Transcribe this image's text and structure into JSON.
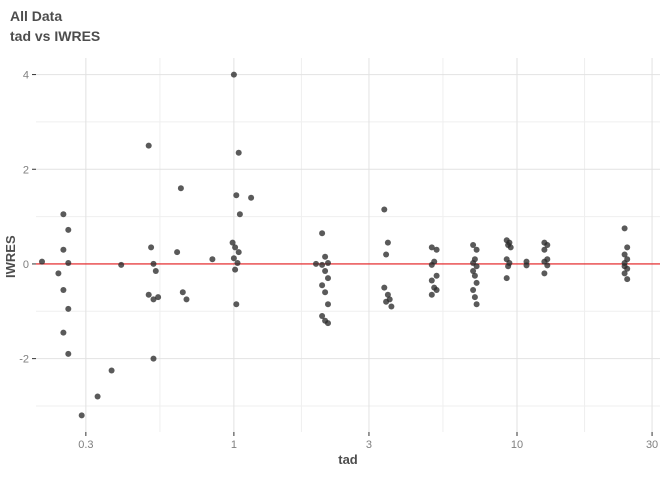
{
  "chart_data": {
    "type": "scatter",
    "title": "All Data",
    "subtitle": "tad vs IWRES",
    "xlabel": "tad",
    "ylabel": "IWRES",
    "x_scale": "log10",
    "xlim": [
      0.2,
      32
    ],
    "ylim": [
      -3.55,
      4.35
    ],
    "x_ticks": [
      0.3,
      1,
      3,
      10,
      30
    ],
    "x_tick_labels": [
      "0.3",
      "1",
      "3",
      "10",
      "30"
    ],
    "x_minor_ticks": [
      0.548,
      1.732,
      5.477,
      17.321
    ],
    "y_ticks": [
      -2,
      0,
      2,
      4
    ],
    "y_tick_labels": [
      "-2",
      "0",
      "2",
      "4"
    ],
    "y_minor_ticks": [
      -3,
      -1,
      1,
      3
    ],
    "grid": true,
    "legend": "none",
    "hline": {
      "y": 0,
      "color": "#e41a1c"
    },
    "point_opacity": 0.78,
    "colors": {
      "point": "#2b2b2b",
      "grid_major": "#e2e2e2",
      "grid_minor": "#efefef",
      "tick": "#333333",
      "tick_label": "#7f7f7f",
      "title": "#4d4d4d"
    },
    "points": [
      [
        0.21,
        0.05
      ],
      [
        0.25,
        1.05
      ],
      [
        0.26,
        0.72
      ],
      [
        0.25,
        0.3
      ],
      [
        0.26,
        0.02
      ],
      [
        0.24,
        -0.2
      ],
      [
        0.25,
        -0.55
      ],
      [
        0.26,
        -0.95
      ],
      [
        0.25,
        -1.45
      ],
      [
        0.26,
        -1.9
      ],
      [
        0.29,
        -3.2
      ],
      [
        0.33,
        -2.8
      ],
      [
        0.37,
        -2.25
      ],
      [
        0.4,
        -0.02
      ],
      [
        0.5,
        2.5
      ],
      [
        0.51,
        0.35
      ],
      [
        0.52,
        0.0
      ],
      [
        0.53,
        -0.15
      ],
      [
        0.5,
        -0.65
      ],
      [
        0.52,
        -0.75
      ],
      [
        0.54,
        -0.7
      ],
      [
        0.52,
        -2.0
      ],
      [
        0.65,
        1.6
      ],
      [
        0.63,
        0.25
      ],
      [
        0.66,
        -0.6
      ],
      [
        0.68,
        -0.75
      ],
      [
        0.84,
        0.1
      ],
      [
        1.0,
        4.0
      ],
      [
        1.04,
        2.35
      ],
      [
        1.02,
        1.45
      ],
      [
        1.05,
        1.05
      ],
      [
        0.99,
        0.45
      ],
      [
        1.01,
        0.35
      ],
      [
        1.04,
        0.25
      ],
      [
        1.0,
        0.12
      ],
      [
        1.03,
        0.02
      ],
      [
        1.01,
        -0.12
      ],
      [
        1.02,
        -0.85
      ],
      [
        1.15,
        1.4
      ],
      [
        1.95,
        0.0
      ],
      [
        2.05,
        0.65
      ],
      [
        2.1,
        0.15
      ],
      [
        2.15,
        0.02
      ],
      [
        2.05,
        -0.02
      ],
      [
        2.1,
        -0.15
      ],
      [
        2.15,
        -0.3
      ],
      [
        2.05,
        -0.45
      ],
      [
        2.1,
        -0.6
      ],
      [
        2.15,
        -0.85
      ],
      [
        2.05,
        -1.1
      ],
      [
        2.1,
        -1.2
      ],
      [
        2.15,
        -1.25
      ],
      [
        3.4,
        1.15
      ],
      [
        3.5,
        0.45
      ],
      [
        3.45,
        0.2
      ],
      [
        3.4,
        -0.5
      ],
      [
        3.5,
        -0.65
      ],
      [
        3.55,
        -0.75
      ],
      [
        3.45,
        -0.8
      ],
      [
        3.6,
        -0.9
      ],
      [
        5.0,
        0.35
      ],
      [
        5.2,
        0.3
      ],
      [
        5.1,
        0.05
      ],
      [
        5.0,
        -0.02
      ],
      [
        5.2,
        -0.25
      ],
      [
        5.0,
        -0.35
      ],
      [
        5.1,
        -0.5
      ],
      [
        5.2,
        -0.55
      ],
      [
        5.0,
        -0.65
      ],
      [
        7.0,
        0.4
      ],
      [
        7.2,
        0.3
      ],
      [
        7.1,
        0.1
      ],
      [
        7.0,
        0.02
      ],
      [
        7.2,
        -0.05
      ],
      [
        7.0,
        -0.15
      ],
      [
        7.1,
        -0.25
      ],
      [
        7.2,
        -0.4
      ],
      [
        7.0,
        -0.55
      ],
      [
        7.1,
        -0.7
      ],
      [
        7.2,
        -0.85
      ],
      [
        9.2,
        0.5
      ],
      [
        9.4,
        0.45
      ],
      [
        9.3,
        0.4
      ],
      [
        9.5,
        0.35
      ],
      [
        9.2,
        0.1
      ],
      [
        9.4,
        0.02
      ],
      [
        9.3,
        -0.05
      ],
      [
        9.2,
        -0.3
      ],
      [
        10.8,
        0.05
      ],
      [
        10.8,
        -0.03
      ],
      [
        12.5,
        0.45
      ],
      [
        12.8,
        0.4
      ],
      [
        12.5,
        0.3
      ],
      [
        12.8,
        0.1
      ],
      [
        12.5,
        0.05
      ],
      [
        12.8,
        -0.03
      ],
      [
        12.5,
        -0.2
      ],
      [
        24.0,
        0.75
      ],
      [
        24.5,
        0.35
      ],
      [
        24.0,
        0.2
      ],
      [
        24.5,
        0.1
      ],
      [
        24.0,
        0.02
      ],
      [
        24.0,
        -0.05
      ],
      [
        24.5,
        -0.1
      ],
      [
        24.0,
        -0.2
      ],
      [
        24.5,
        -0.32
      ]
    ]
  }
}
